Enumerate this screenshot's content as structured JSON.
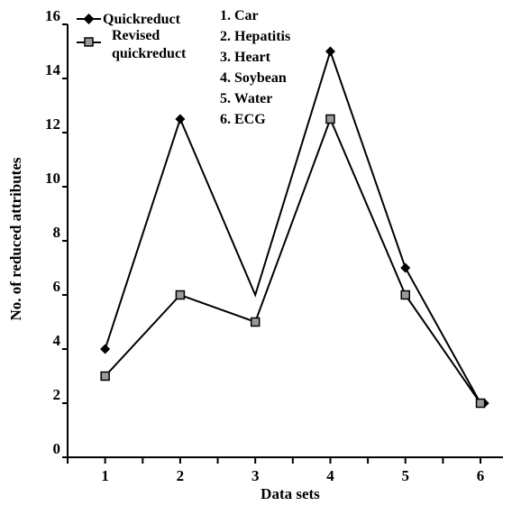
{
  "chart_data": {
    "type": "line",
    "title": "",
    "xlabel": "Data sets",
    "ylabel": "No. of reduced attributes",
    "x": [
      1,
      2,
      3,
      4,
      5,
      6
    ],
    "x_tick_labels": [
      "1",
      "2",
      "3",
      "4",
      "5",
      "6"
    ],
    "xlim": [
      0.5,
      6.3
    ],
    "ylim": [
      0,
      16
    ],
    "y_tick_labels": [
      "0",
      "2",
      "4",
      "6",
      "8",
      "10",
      "12",
      "14",
      "16"
    ],
    "y_ticks": [
      0,
      2,
      4,
      6,
      8,
      10,
      12,
      14,
      16
    ],
    "grid": false,
    "legend_position": "top-left",
    "series": [
      {
        "name": "Quickreduct",
        "marker": "diamond",
        "color": "#000000",
        "points": [
          [
            1,
            4
          ],
          [
            2,
            12.5
          ],
          [
            3,
            6
          ],
          [
            4,
            15
          ],
          [
            5,
            7
          ],
          [
            6,
            2
          ]
        ],
        "marker_x": [
          1,
          2,
          4,
          5,
          6.05
        ]
      },
      {
        "name": "Revised quickreduct",
        "legend_lines": [
          "Revised",
          "quickreduct"
        ],
        "marker": "square",
        "color": "#000000",
        "marker_fill": "#9a9a9a",
        "points": [
          [
            1,
            3
          ],
          [
            2,
            6
          ],
          [
            3,
            5
          ],
          [
            4,
            12.5
          ],
          [
            5,
            6
          ],
          [
            6,
            2
          ]
        ]
      }
    ],
    "annotations": [
      "1. Car",
      "2. Hepatitis",
      "3. Heart",
      "4. Soybean",
      "5. Water",
      "6. ECG"
    ]
  }
}
